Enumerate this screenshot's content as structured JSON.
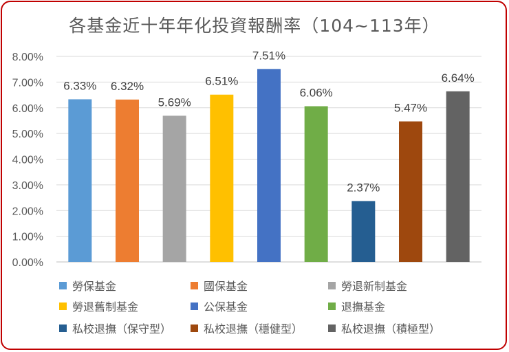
{
  "chart_data": {
    "type": "bar",
    "title": "各基金近十年年化投資報酬率（104~113年）",
    "xlabel": "",
    "ylabel": "",
    "ylim": [
      0,
      8
    ],
    "y_ticks": [
      "0.00%",
      "1.00%",
      "2.00%",
      "3.00%",
      "4.00%",
      "5.00%",
      "6.00%",
      "7.00%",
      "8.00%"
    ],
    "grid": true,
    "legend_position": "bottom",
    "categories": [
      "勞保基金",
      "國保基金",
      "勞退新制基金",
      "勞退舊制基金",
      "公保基金",
      "退撫基金",
      "私校退撫（保守型）",
      "私校退撫（穩健型）",
      "私校退撫（積極型）"
    ],
    "values": [
      6.33,
      6.32,
      5.69,
      6.51,
      7.51,
      6.06,
      2.37,
      5.47,
      6.64
    ],
    "data_labels": [
      "6.33%",
      "6.32%",
      "5.69%",
      "6.51%",
      "7.51%",
      "6.06%",
      "2.37%",
      "5.47%",
      "6.64%"
    ],
    "colors": [
      "#5b9bd5",
      "#ed7d31",
      "#a5a5a5",
      "#ffc000",
      "#4472c4",
      "#70ad47",
      "#255e91",
      "#9e480e",
      "#636363"
    ]
  },
  "frame_color": "#c00000"
}
